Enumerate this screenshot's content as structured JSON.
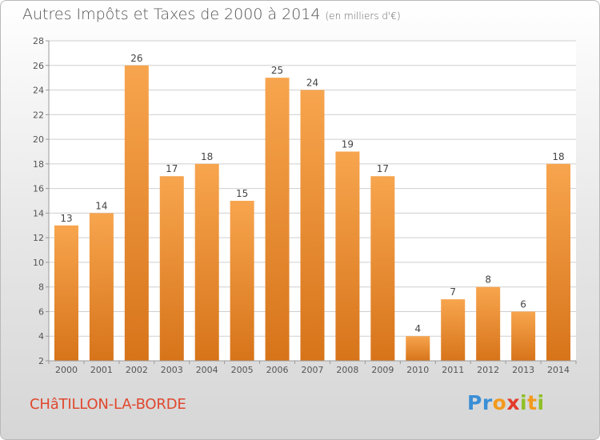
{
  "header": {
    "title": "Autres Impôts et Taxes de 2000 à 2014",
    "unit": "(en milliers d'€)"
  },
  "footer": {
    "town": "CHâTILLON-LA-BORDE",
    "logo_letters": [
      "P",
      "r",
      "o",
      "x",
      "i",
      "t",
      "i"
    ],
    "logo_colors": [
      "#3a8fd6",
      "#3a8fd6",
      "#f29a1d",
      "#e23a2a",
      "#8fbf26",
      "#f29a1d",
      "#8fbf26"
    ]
  },
  "chart_data": {
    "type": "bar",
    "categories": [
      "2000",
      "2001",
      "2002",
      "2003",
      "2004",
      "2005",
      "2006",
      "2007",
      "2008",
      "2009",
      "2010",
      "2011",
      "2012",
      "2013",
      "2014"
    ],
    "values": [
      13,
      14,
      26,
      17,
      18,
      15,
      25,
      24,
      19,
      17,
      4,
      7,
      8,
      6,
      18
    ],
    "ylim": [
      2,
      28
    ],
    "yticks": [
      2,
      4,
      6,
      8,
      10,
      12,
      14,
      16,
      18,
      20,
      22,
      24,
      26,
      28
    ],
    "grid": true,
    "bar_color_top": "#f7a54e",
    "bar_color_bottom": "#d7741a",
    "grid_color": "#cfcfcf",
    "axis_color": "#9a9a9a"
  }
}
